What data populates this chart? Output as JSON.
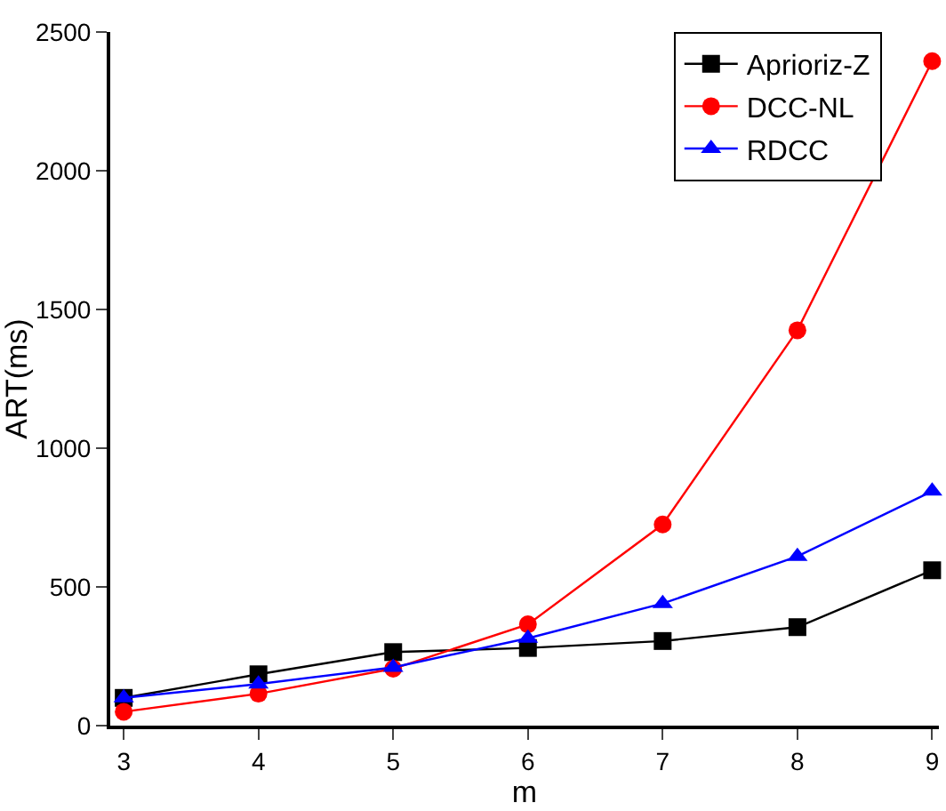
{
  "chart_data": {
    "type": "line",
    "xlabel": "m",
    "ylabel": "ART(ms)",
    "x": [
      3,
      4,
      5,
      6,
      7,
      8,
      9
    ],
    "series": [
      {
        "name": "Aprioriz-Z",
        "color": "#000000",
        "marker": "square",
        "values": [
          100,
          185,
          265,
          280,
          305,
          355,
          560
        ]
      },
      {
        "name": "DCC-NL",
        "color": "#ff0000",
        "marker": "circle",
        "values": [
          50,
          115,
          205,
          365,
          725,
          1425,
          2395
        ]
      },
      {
        "name": "RDCC",
        "color": "#0000ff",
        "marker": "triangle",
        "values": [
          100,
          150,
          210,
          315,
          440,
          610,
          845
        ]
      }
    ],
    "xlim": [
      2.9,
      9.05
    ],
    "xticks": [
      3,
      4,
      5,
      6,
      7,
      8,
      9
    ],
    "ylim": [
      0,
      2500
    ],
    "yticks": [
      0,
      500,
      1000,
      1500,
      2000,
      2500
    ],
    "legend": "top right",
    "line_style": "solid"
  }
}
